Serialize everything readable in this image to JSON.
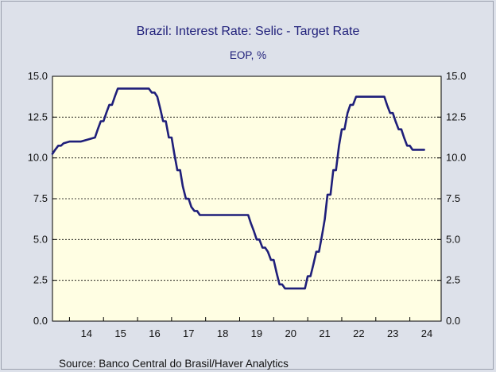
{
  "chart_data": {
    "type": "line",
    "title": "Brazil: Interest Rate: Selic - Target Rate",
    "subtitle": "EOP, %",
    "source": "Source:  Banco Central do Brasil/Haver Analytics",
    "x_ticks": [
      "14",
      "15",
      "16",
      "17",
      "18",
      "19",
      "20",
      "21",
      "22",
      "23",
      "24"
    ],
    "y_ticks_left": [
      "15.0",
      "12.5",
      "10.0",
      "7.5",
      "5.0",
      "2.5",
      "0.0"
    ],
    "y_ticks_right": [
      "15.0",
      "12.5",
      "10.0",
      "7.5",
      "5.0",
      "2.5",
      "0.0"
    ],
    "ylim": [
      0,
      15
    ],
    "xlim": [
      2013.5,
      2024.92
    ],
    "grid": "horizontal dashed",
    "line_color": "#1f1f7a",
    "background_color": "#fffee3",
    "series": [
      {
        "x": [
          2013.5,
          2013.58,
          2013.67,
          2013.75,
          2013.83,
          2014.0,
          2014.08,
          2014.17,
          2014.25,
          2014.33,
          2014.75,
          2014.83,
          2014.92,
          2015.0,
          2015.08,
          2015.17,
          2015.25,
          2015.33,
          2015.42,
          2015.5,
          2015.58,
          2016.25,
          2016.33,
          2016.42,
          2016.5,
          2016.58,
          2016.67,
          2016.75,
          2016.83,
          2016.92,
          2017.0,
          2017.08,
          2017.17,
          2017.25,
          2017.33,
          2017.42,
          2017.5,
          2017.58,
          2017.67,
          2017.75,
          2017.83,
          2018.0,
          2018.08,
          2018.17,
          2018.25,
          2019.17,
          2019.25,
          2019.33,
          2019.42,
          2019.5,
          2019.58,
          2019.67,
          2019.75,
          2019.83,
          2019.92,
          2020.0,
          2020.08,
          2020.17,
          2020.25,
          2020.33,
          2020.42,
          2020.5,
          2020.58,
          2020.92,
          2021.0,
          2021.08,
          2021.17,
          2021.25,
          2021.33,
          2021.42,
          2021.5,
          2021.58,
          2021.67,
          2021.75,
          2021.83,
          2021.92,
          2022.0,
          2022.08,
          2022.17,
          2022.25,
          2022.33,
          2022.42,
          2022.5,
          2022.58,
          2022.67,
          2023.17,
          2023.25,
          2023.33,
          2023.42,
          2023.5,
          2023.58,
          2023.67,
          2023.75,
          2023.83,
          2023.92,
          2024.0,
          2024.08,
          2024.17,
          2024.42
        ],
        "values": [
          10.25,
          10.5,
          10.75,
          10.75,
          10.9,
          11.0,
          11.0,
          11.0,
          11.0,
          11.0,
          11.25,
          11.75,
          12.25,
          12.25,
          12.75,
          13.25,
          13.25,
          13.75,
          14.25,
          14.25,
          14.25,
          14.25,
          14.25,
          14.0,
          14.0,
          13.75,
          13.0,
          12.25,
          12.25,
          11.25,
          11.25,
          10.25,
          9.25,
          9.25,
          8.25,
          7.5,
          7.5,
          7.0,
          6.75,
          6.75,
          6.5,
          6.5,
          6.5,
          6.5,
          6.5,
          6.5,
          6.5,
          6.0,
          5.5,
          5.0,
          5.0,
          4.5,
          4.5,
          4.25,
          3.75,
          3.75,
          3.0,
          2.25,
          2.25,
          2.0,
          2.0,
          2.0,
          2.0,
          2.0,
          2.75,
          2.75,
          3.5,
          4.25,
          4.25,
          5.25,
          6.25,
          7.75,
          7.75,
          9.25,
          9.25,
          10.75,
          11.75,
          11.75,
          12.75,
          13.25,
          13.25,
          13.75,
          13.75,
          13.75,
          13.75,
          13.75,
          13.75,
          13.25,
          12.75,
          12.75,
          12.25,
          11.75,
          11.75,
          11.25,
          10.75,
          10.75,
          10.5,
          10.5,
          10.5
        ]
      }
    ]
  }
}
